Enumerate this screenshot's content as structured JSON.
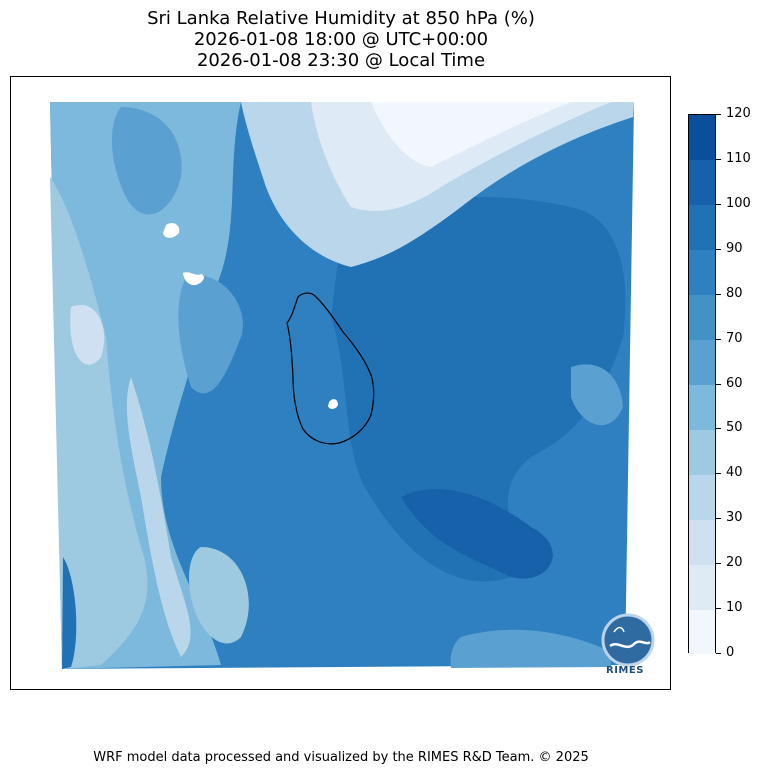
{
  "title": {
    "line1": "Sri Lanka Relative Humidity at 850 hPa (%)",
    "line2": "2026-01-08 18:00 @ UTC+00:00",
    "line3": "2026-01-08 23:30 @ Local Time"
  },
  "colorbar": {
    "ticks": [
      "0",
      "10",
      "20",
      "30",
      "40",
      "50",
      "60",
      "70",
      "80",
      "90",
      "100",
      "110",
      "120"
    ],
    "colors": [
      "#f2f7fd",
      "#deebf7",
      "#cfe0f2",
      "#bad6eb",
      "#9ecae1",
      "#7db9dc",
      "#5aa0d0",
      "#4292c6",
      "#2f80c0",
      "#2171b5",
      "#1761aa",
      "#0a4f9b",
      "#083c7a"
    ]
  },
  "logo": {
    "text": "RIMES"
  },
  "footer": "WRF model data processed and visualized by the RIMES R&D Team. © 2025"
}
